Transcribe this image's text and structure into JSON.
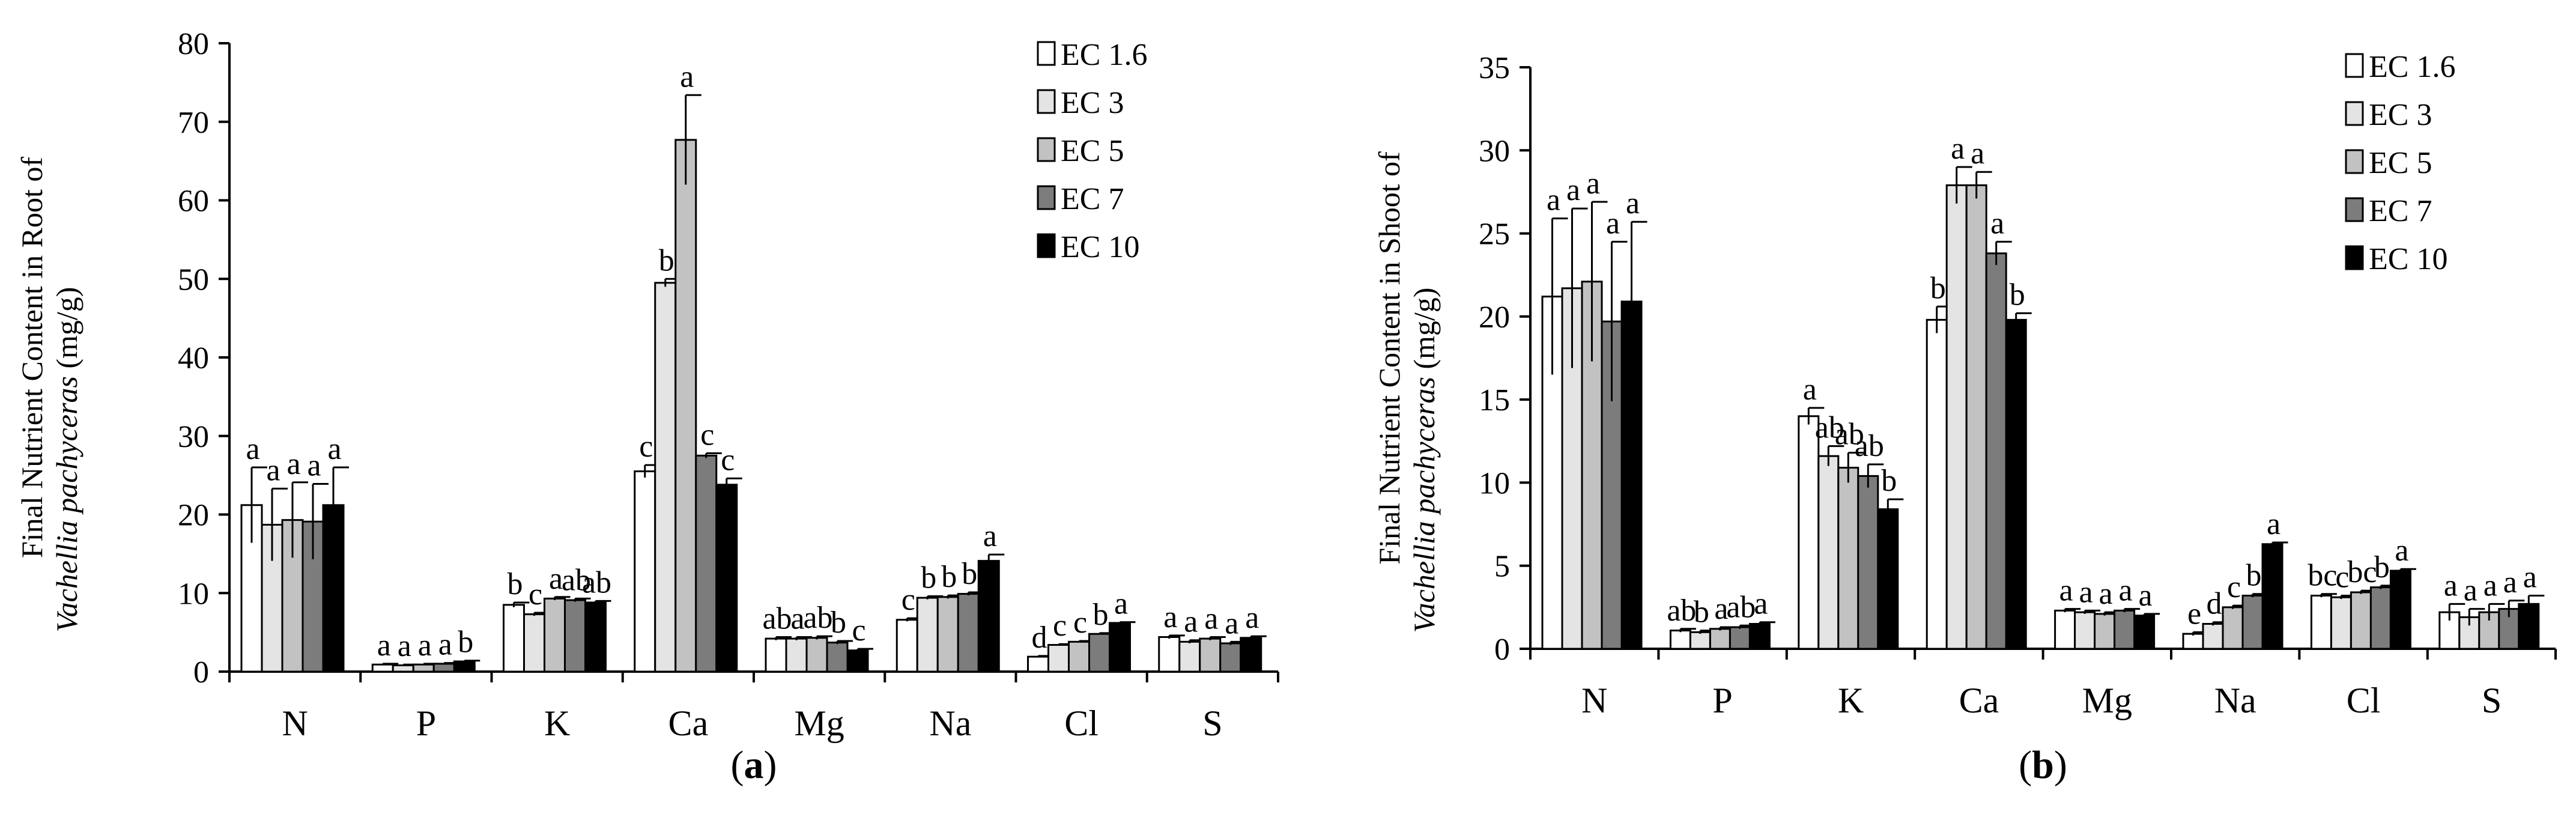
{
  "figure": {
    "legend": [
      "EC 1.6",
      "EC 3",
      "EC 5",
      "EC 7",
      "EC 10"
    ],
    "series_colors": [
      "#ffffff",
      "#e4e4e4",
      "#c2c2c2",
      "#7c7c7c",
      "#000000"
    ]
  },
  "chart_data": [
    {
      "type": "bar",
      "panel_label": "(a)",
      "panel_letter": "a",
      "ylabel_line1": "Final Nutrient Content in Root of",
      "ylabel_line2_italic": "Vachellia pachyceras",
      "ylabel_line2_unit": " (mg/g)",
      "ylim": [
        0,
        80
      ],
      "yticks": [
        "0",
        "10",
        "20",
        "30",
        "40",
        "50",
        "60",
        "70",
        "80"
      ],
      "categories": [
        "N",
        "P",
        "K",
        "Ca",
        "Mg",
        "Na",
        "Cl",
        "S"
      ],
      "series": [
        {
          "name": "EC 1.6",
          "values": [
            21.2,
            0.9,
            8.5,
            25.5,
            4.2,
            6.6,
            1.9,
            4.4
          ],
          "errors": [
            4.8,
            0.1,
            0.3,
            0.8,
            0.2,
            0.2,
            0.1,
            0.2
          ],
          "letters": [
            "a",
            "a",
            "b",
            "c",
            "ab",
            "c",
            "d",
            "a"
          ]
        },
        {
          "name": "EC 3",
          "values": [
            18.7,
            0.8,
            7.3,
            49.5,
            4.2,
            9.4,
            3.4,
            3.8
          ],
          "errors": [
            4.6,
            0.1,
            0.2,
            0.5,
            0.2,
            0.2,
            0.1,
            0.2
          ],
          "letters": [
            "a",
            "a",
            "c",
            "b",
            "a",
            "b",
            "c",
            "a"
          ]
        },
        {
          "name": "EC 5",
          "values": [
            19.3,
            0.9,
            9.3,
            67.7,
            4.3,
            9.5,
            3.8,
            4.2
          ],
          "errors": [
            4.8,
            0.1,
            0.2,
            5.7,
            0.2,
            0.2,
            0.1,
            0.2
          ],
          "letters": [
            "a",
            "a",
            "a",
            "a",
            "ab",
            "b",
            "c",
            "a"
          ]
        },
        {
          "name": "EC 7",
          "values": [
            19.1,
            1.0,
            9.1,
            27.5,
            3.7,
            9.9,
            4.8,
            3.6
          ],
          "errors": [
            4.8,
            0.1,
            0.2,
            0.3,
            0.2,
            0.2,
            0.1,
            0.2
          ],
          "letters": [
            "a",
            "a",
            "ab",
            "c",
            "b",
            "b",
            "b",
            "a"
          ]
        },
        {
          "name": "EC 10",
          "values": [
            21.2,
            1.3,
            8.8,
            23.8,
            2.7,
            14.1,
            6.2,
            4.3
          ],
          "errors": [
            4.8,
            0.1,
            0.2,
            0.8,
            0.2,
            0.8,
            0.1,
            0.2
          ],
          "letters": [
            "a",
            "b",
            "ab",
            "c",
            "c",
            "a",
            "a",
            "a"
          ]
        }
      ]
    },
    {
      "type": "bar",
      "panel_label": "(b)",
      "panel_letter": "b",
      "ylabel_line1": "Final Nutrient Content in Shoot of",
      "ylabel_line2_italic": "Vachellia pachyceras",
      "ylabel_line2_unit": " (mg/g)",
      "ylim": [
        0,
        35
      ],
      "yticks": [
        "0",
        "5",
        "10",
        "15",
        "20",
        "25",
        "30",
        "35"
      ],
      "categories": [
        "N",
        "P",
        "K",
        "Ca",
        "Mg",
        "Na",
        "Cl",
        "S"
      ],
      "series": [
        {
          "name": "EC 1.6",
          "values": [
            21.2,
            1.1,
            14.0,
            19.8,
            2.3,
            0.9,
            3.2,
            2.2
          ],
          "errors": [
            4.7,
            0.1,
            0.5,
            0.8,
            0.1,
            0.1,
            0.1,
            0.5
          ],
          "letters": [
            "a",
            "ab",
            "a",
            "b",
            "a",
            "e",
            "bc",
            "a"
          ]
        },
        {
          "name": "EC 3",
          "values": [
            21.7,
            1.0,
            11.6,
            27.9,
            2.2,
            1.5,
            3.1,
            1.9
          ],
          "errors": [
            4.8,
            0.1,
            0.6,
            1.1,
            0.1,
            0.1,
            0.1,
            0.5
          ],
          "letters": [
            "a",
            "b",
            "ab",
            "a",
            "a",
            "d",
            "c",
            "a"
          ]
        },
        {
          "name": "EC 5",
          "values": [
            22.1,
            1.2,
            10.9,
            27.9,
            2.1,
            2.5,
            3.4,
            2.2
          ],
          "errors": [
            4.8,
            0.1,
            0.9,
            0.8,
            0.1,
            0.1,
            0.1,
            0.5
          ],
          "letters": [
            "a",
            "a",
            "ab",
            "a",
            "a",
            "c",
            "bc",
            "a"
          ]
        },
        {
          "name": "EC 7",
          "values": [
            19.7,
            1.3,
            10.4,
            23.8,
            2.3,
            3.2,
            3.7,
            2.4
          ],
          "errors": [
            4.8,
            0.1,
            0.7,
            0.7,
            0.1,
            0.1,
            0.1,
            0.5
          ],
          "letters": [
            "a",
            "ab",
            "ab",
            "a",
            "a",
            "b",
            "b",
            "a"
          ]
        },
        {
          "name": "EC 10",
          "values": [
            20.9,
            1.5,
            8.4,
            19.8,
            2.0,
            6.3,
            4.7,
            2.7
          ],
          "errors": [
            4.8,
            0.1,
            0.6,
            0.4,
            0.1,
            0.1,
            0.1,
            0.5
          ],
          "letters": [
            "a",
            "a",
            "b",
            "b",
            "a",
            "a",
            "a",
            "a"
          ]
        }
      ]
    }
  ]
}
